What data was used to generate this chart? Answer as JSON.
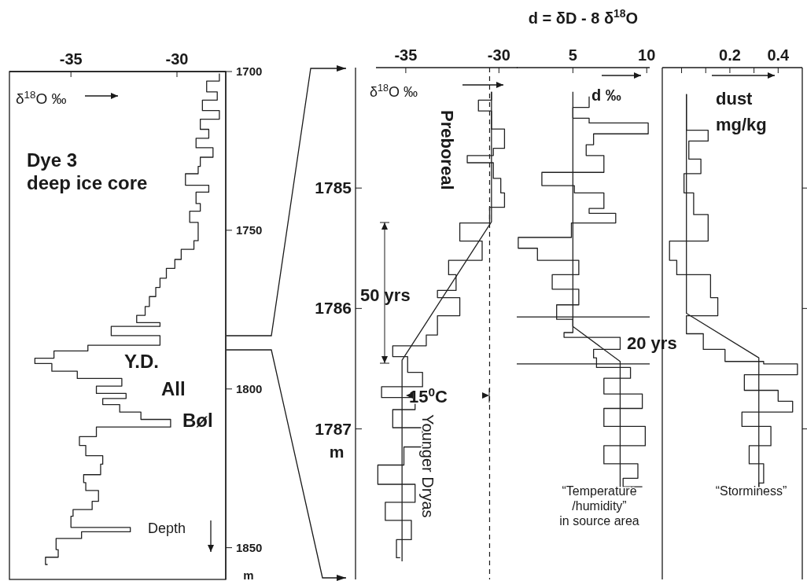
{
  "chart_data": [
    {
      "type": "step",
      "ylabel": "m",
      "annotations": [
        "δ$^{18}$O ‰",
        "Dye 3\ndeep ice core",
        "Y.D.",
        "All",
        "Bøl",
        "Depth"
      ],
      "xlim": [
        -37.9,
        -27.7
      ],
      "ylim": [
        1860,
        1700
      ],
      "xticks": [
        -35,
        -30
      ],
      "yticks": [
        1700,
        1750,
        1800,
        1850
      ],
      "series": [
        {
          "type": "step",
          "color": "#222222",
          "x": [
            -28.0,
            -28.6,
            -28.1,
            -28.8,
            -28.0,
            -28.9,
            -28.5,
            -29.1,
            -28.3,
            -28.9,
            -29.0,
            -29.6,
            -28.5,
            -29.1,
            -28.9,
            -29.4,
            -29.0,
            -29.2,
            -29.8,
            -30.1,
            -30.5,
            -30.8,
            -31.0,
            -31.3,
            -31.5,
            -31.9,
            -30.8,
            -33.1,
            -30.8,
            -34.2,
            -35.8,
            -36.7,
            -35.9,
            -34.7,
            -32.6,
            -33.8,
            -32.4,
            -33.5,
            -32.7,
            -31.7,
            -30.3,
            -33.8,
            -34.6,
            -34.3,
            -33.5,
            -33.6,
            -34.4,
            -34.3,
            -33.7,
            -34.0,
            -34.9,
            -35.0,
            -32.2,
            -34.5,
            -35.7,
            -35.6,
            -36.2,
            -36.1
          ],
          "values": [
            1700.6,
            1703,
            1706.4,
            1709,
            1712.3,
            1715,
            1718.2,
            1721,
            1724.0,
            1727,
            1729.9,
            1732.2,
            1735.8,
            1738,
            1741.6,
            1744,
            1747.5,
            1753.3,
            1756,
            1759.2,
            1762,
            1765.1,
            1768,
            1770.9,
            1774,
            1776.8,
            1779.1,
            1780.3,
            1783.2,
            1786.2,
            1788,
            1790.3,
            1792.0,
            1794.4,
            1796.7,
            1799.1,
            1801.4,
            1803,
            1804.9,
            1807.3,
            1809.6,
            1812.0,
            1815,
            1817.8,
            1821,
            1823.7,
            1827,
            1829.5,
            1832,
            1835.4,
            1838,
            1840.1,
            1843.6,
            1845,
            1847.1,
            1850.6,
            1853,
            1855.3
          ]
        }
      ]
    },
    {
      "type": "step",
      "ylabel": "m",
      "annotations": [
        "δ$^{18}$O ‰",
        "Preboreal",
        "50 yrs",
        "15$^{0}$C",
        "Younger Dryas"
      ],
      "xlim": [
        -36.6,
        -29.0
      ],
      "ylim": [
        1788.25,
        1784
      ],
      "xticks": [
        -35,
        -30
      ],
      "yticks": [
        1785,
        1786,
        1787
      ],
      "ref_lines": [
        {
          "axis": "x",
          "value": -30.5,
          "line_style": "dashed"
        }
      ],
      "series": [
        {
          "type": "step",
          "color": "#222222",
          "x": [
            -30.4,
            -31.1,
            -30.4,
            -29.7,
            -30.3,
            -31.7,
            -30.3,
            -29.9,
            -29.7,
            -30.5,
            -32.1,
            -30.9,
            -32.7,
            -32.3,
            -33.3,
            -32.1,
            -33.3,
            -33.9,
            -35.7,
            -34.9,
            -34.1,
            -36.3,
            -34.5,
            -35.7,
            -34.1,
            -35.1,
            -36.5,
            -34.5,
            -36.1,
            -34.7,
            -35.5,
            -35.3
          ],
          "values": [
            1784.2,
            1784.27,
            1784.36,
            1784.51,
            1784.67,
            1784.73,
            1784.79,
            1784.92,
            1785.04,
            1785.16,
            1785.29,
            1785.44,
            1785.6,
            1785.72,
            1785.85,
            1785.91,
            1786.06,
            1786.22,
            1786.31,
            1786.4,
            1786.53,
            1786.65,
            1786.74,
            1786.84,
            1786.99,
            1787.15,
            1787.3,
            1787.46,
            1787.61,
            1787.76,
            1787.92,
            1788.07
          ]
        },
        {
          "type": "line",
          "color": "#222222",
          "x": [
            -30.4,
            -30.4,
            -35.2,
            -35.2
          ],
          "values": [
            1784.2,
            1785.28,
            1786.43,
            1788.1
          ]
        }
      ]
    },
    {
      "type": "step",
      "title": "d = δD - 8 δ$^{18}$O",
      "annotations": [
        "d ‰",
        "20 yrs",
        "“Temperature\n/humidity”\nin source area"
      ],
      "xlim": [
        1.2,
        10.2
      ],
      "ylim": [
        1788.25,
        1784
      ],
      "xticks": [
        5,
        10
      ],
      "tick_labels": "x",
      "ref_lines": [
        {
          "axis": "y",
          "value": 1786.07
        },
        {
          "axis": "y",
          "value": 1786.46
        }
      ],
      "series": [
        {
          "type": "step",
          "color": "#222222",
          "x": [
            6.1,
            5.0,
            6.1,
            10.1,
            6.4,
            5.9,
            7.1,
            2.9,
            5.1,
            7.1,
            6.1,
            7.9,
            4.9,
            1.3,
            2.6,
            5.4,
            3.6,
            5.4,
            3.9,
            5.0,
            4.4,
            8.2,
            6.4,
            6.6,
            8.9,
            7.1,
            9.7,
            7.1,
            9.9,
            7.1,
            9.4,
            8.4,
            9.7
          ],
          "values": [
            1784.24,
            1784.33,
            1784.42,
            1784.46,
            1784.55,
            1784.64,
            1784.73,
            1784.87,
            1784.98,
            1785.04,
            1785.17,
            1785.21,
            1785.29,
            1785.41,
            1785.5,
            1785.6,
            1785.72,
            1785.84,
            1785.97,
            1786.09,
            1786.2,
            1786.24,
            1786.34,
            1786.41,
            1786.49,
            1786.58,
            1786.71,
            1786.83,
            1786.98,
            1787.14,
            1787.29,
            1787.41,
            1787.48
          ]
        },
        {
          "type": "line",
          "color": "#222222",
          "x": [
            5.0,
            5.0,
            8.2,
            8.2
          ],
          "values": [
            1784.2,
            1786.15,
            1786.44,
            1787.5
          ]
        }
      ]
    },
    {
      "type": "step",
      "annotations": [
        "dust\nmg/kg",
        "“Storminess”"
      ],
      "xlim": [
        -0.08,
        0.5
      ],
      "ylim": [
        1788.25,
        1784
      ],
      "xticks": [
        {
          "value": 0,
          "label": null
        },
        {
          "value": 0.1,
          "label": null
        },
        0.2,
        {
          "value": 0.3,
          "label": null
        },
        0.4
      ],
      "yticks": [
        1785,
        1786,
        1787
      ],
      "tick_labels": "x",
      "series": [
        {
          "type": "step",
          "color": "#222222",
          "x": [
            0.02,
            0.11,
            0.03,
            0.08,
            0.01,
            0.05,
            0.11,
            0.11,
            -0.05,
            -0.02,
            0.12,
            0.15,
            0.02,
            0.09,
            0.18,
            0.34,
            0.48,
            0.26,
            0.4,
            0.46,
            0.25,
            0.37,
            0.28,
            0.34,
            0.32,
            0.37
          ],
          "values": [
            1784.22,
            1784.52,
            1784.61,
            1784.76,
            1784.88,
            1785.04,
            1785.22,
            1785.32,
            1785.44,
            1785.6,
            1785.72,
            1785.91,
            1786.06,
            1786.21,
            1786.34,
            1786.44,
            1786.46,
            1786.55,
            1786.68,
            1786.77,
            1786.86,
            1786.98,
            1787.14,
            1787.29,
            1787.45,
            1787.51
          ]
        },
        {
          "type": "line",
          "color": "#222222",
          "x": [
            0.02,
            0.02,
            0.32,
            0.32
          ],
          "values": [
            1784.22,
            1786.04,
            1786.41,
            1787.51
          ]
        }
      ]
    }
  ]
}
